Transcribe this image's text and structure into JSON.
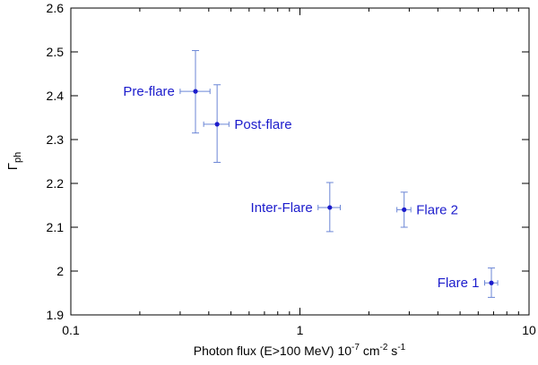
{
  "chart_data": {
    "type": "scatter",
    "xscale": "log",
    "xlim": [
      0.1,
      10
    ],
    "ylim": [
      1.9,
      2.6
    ],
    "xticks": [
      {
        "value": 0.1,
        "label": "0.1"
      },
      {
        "value": 1,
        "label": "1"
      },
      {
        "value": 10,
        "label": "10"
      }
    ],
    "yticks": [
      {
        "value": 1.9,
        "label": "1.9"
      },
      {
        "value": 2.0,
        "label": "2"
      },
      {
        "value": 2.1,
        "label": "2.1"
      },
      {
        "value": 2.2,
        "label": "2.2"
      },
      {
        "value": 2.3,
        "label": "2.3"
      },
      {
        "value": 2.4,
        "label": "2.4"
      },
      {
        "value": 2.5,
        "label": "2.5"
      },
      {
        "value": 2.6,
        "label": "2.6"
      }
    ],
    "xlabel_main": "Photon flux (E>100 MeV) 10",
    "xlabel_sup1": "-7",
    "xlabel_mid": " cm",
    "xlabel_sup2": "-2",
    "xlabel_end": " s",
    "xlabel_sup3": "-1",
    "ylabel_main": "Γ",
    "ylabel_sub": "ph",
    "grid": false,
    "color": "#1c1ccc",
    "errorbar_color": "#6b86d6",
    "points": [
      {
        "label": "Pre-flare",
        "label_side": "left",
        "x": 0.35,
        "xlo": 0.3,
        "xhi": 0.405,
        "y": 2.41,
        "ylo": 2.315,
        "yhi": 2.503
      },
      {
        "label": "Post-flare",
        "label_side": "right",
        "x": 0.435,
        "xlo": 0.38,
        "xhi": 0.49,
        "y": 2.335,
        "ylo": 2.248,
        "yhi": 2.425
      },
      {
        "label": "Inter-Flare",
        "label_side": "left",
        "x": 1.35,
        "xlo": 1.2,
        "xhi": 1.5,
        "y": 2.145,
        "ylo": 2.09,
        "yhi": 2.202
      },
      {
        "label": "Flare 2",
        "label_side": "right",
        "x": 2.85,
        "xlo": 2.65,
        "xhi": 3.05,
        "y": 2.14,
        "ylo": 2.1,
        "yhi": 2.18
      },
      {
        "label": "Flare 1",
        "label_side": "left",
        "x": 6.85,
        "xlo": 6.4,
        "xhi": 7.3,
        "y": 1.973,
        "ylo": 1.94,
        "yhi": 2.007
      }
    ]
  }
}
